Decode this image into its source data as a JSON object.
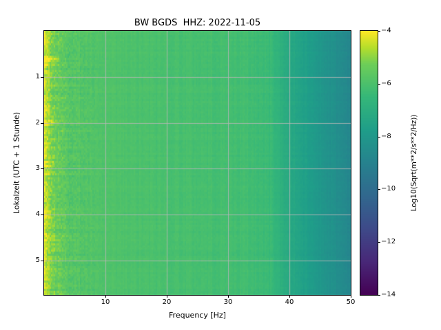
{
  "title": "BW BGDS  HHZ: 2022-11-05",
  "chart_data": {
    "type": "heatmap",
    "title": "BW BGDS  HHZ: 2022-11-05",
    "xlabel": "Frequency [Hz]",
    "ylabel": "Lokalzeit (UTC + 1 Stunde)",
    "xlim": [
      0,
      50
    ],
    "ylim_hours": [
      0,
      5.75
    ],
    "x_ticks": {
      "values": [
        10,
        20,
        30,
        40,
        50
      ],
      "labels": [
        "10",
        "20",
        "30",
        "40",
        "50"
      ]
    },
    "y_ticks": {
      "values": [
        1,
        2,
        3,
        4,
        5
      ],
      "labels": [
        "1",
        "2",
        "3",
        "4",
        "5"
      ]
    },
    "grid": true,
    "colormap": "viridis",
    "colorbar": {
      "label": "Log10(Sqrt(m**2/s**2/Hz))",
      "range": [
        -14,
        -4
      ],
      "ticks": {
        "values": [
          -4,
          -6,
          -8,
          -10,
          -12,
          -14
        ],
        "labels": [
          "−4",
          "−6",
          "−8",
          "−10",
          "−12",
          "−14"
        ]
      }
    },
    "spectrum_profile": {
      "freq_hz": [
        0,
        0.5,
        1,
        2,
        4,
        8,
        15,
        25,
        33,
        37,
        39,
        42,
        46,
        50
      ],
      "log10_amp": [
        -4.3,
        -4.6,
        -5.0,
        -5.4,
        -5.7,
        -5.9,
        -6.0,
        -6.1,
        -6.2,
        -6.4,
        -7.0,
        -7.6,
        -8.2,
        -8.8
      ]
    },
    "noise": {
      "low_freq_amp": 0.38,
      "high_freq_amp": 0.08,
      "row_streak_amp": 0.5,
      "col_streak_amp": 0.1
    },
    "events": [
      {
        "time_h": 0.6,
        "fmax_hz": 2.5,
        "boost": 0.9
      },
      {
        "time_h": 2.0,
        "fmax_hz": 1.5,
        "boost": 0.5
      },
      {
        "time_h": 2.9,
        "fmax_hz": 1.5,
        "boost": 0.5
      },
      {
        "time_h": 4.0,
        "fmax_hz": 1.2,
        "boost": 0.4
      }
    ]
  }
}
